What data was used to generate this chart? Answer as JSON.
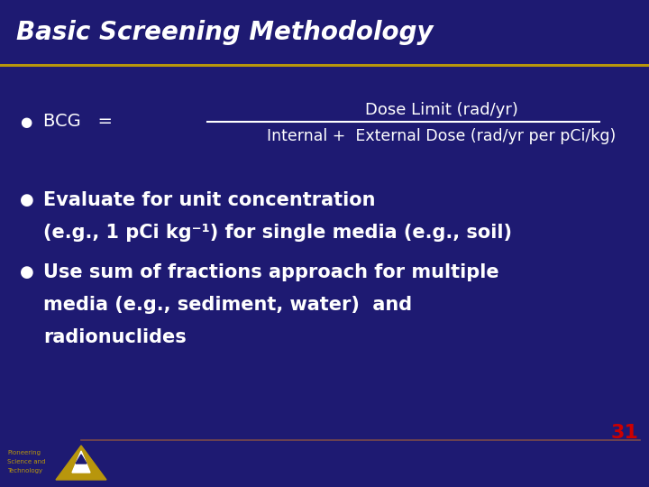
{
  "title": "Basic Screening Methodology",
  "title_color": "#FFFFFF",
  "title_bg_color": "#1E1A72",
  "title_line_color": "#B8960C",
  "bg_color": "#1E1A72",
  "text_color": "#FFFFFF",
  "bullet_color": "#FFFFFF",
  "page_number": "31",
  "page_number_color": "#CC0000",
  "footer_line_color": "#7A4A4A",
  "bcg_numerator": "Dose Limit (rad/yr)",
  "bcg_denominator": "Internal +  External Dose (rad/yr per pCi/kg)",
  "bullet1_line1": "Evaluate for unit concentration",
  "bullet1_line2": "(e.g., 1 pCi kg⁻¹) for single media (e.g., soil)",
  "bullet2_line1": "Use sum of fractions approach for multiple",
  "bullet2_line2": "media (e.g., sediment, water)  and",
  "bullet2_line3": "radionuclides",
  "footer_text_line1": "Pioneering",
  "footer_text_line2": "Science and",
  "footer_text_line3": "Technology",
  "footer_text_color": "#B8960C",
  "logo_color": "#B8960C"
}
